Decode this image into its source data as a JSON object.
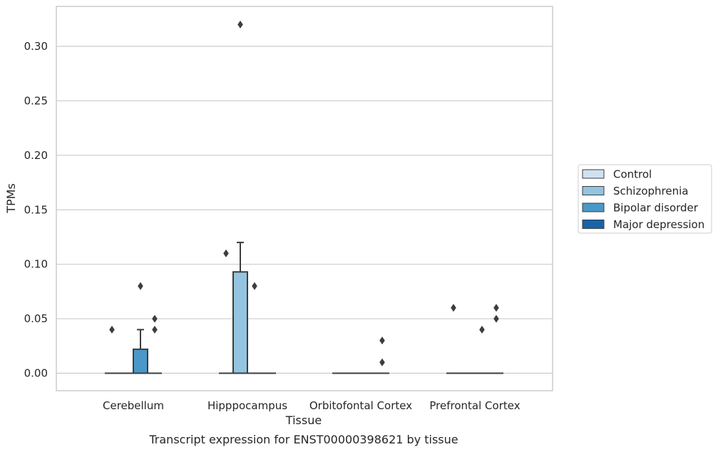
{
  "chart_data": {
    "type": "box",
    "xlabel": "Tissue",
    "ylabel": "TPMs",
    "caption": "Transcript expression for ENST00000398621 by tissue",
    "ylim": [
      -0.016,
      0.336
    ],
    "yticks": [
      0.0,
      0.05,
      0.1,
      0.15,
      0.2,
      0.25,
      0.3
    ],
    "ytick_labels": [
      "0.00",
      "0.05",
      "0.10",
      "0.15",
      "0.20",
      "0.25",
      "0.30"
    ],
    "grid": true,
    "legend_position": "right",
    "categories": [
      "Cerebellum",
      "Hipppocampus",
      "Orbitofontal Cortex",
      "Prefrontal Cortex"
    ],
    "series": [
      {
        "name": "Control",
        "color": "#d0e1f2",
        "boxes": [
          {
            "q1": 0,
            "median": 0,
            "q3": 0,
            "whisker_low": 0,
            "whisker_high": 0,
            "outliers": [
              0.04
            ]
          },
          {
            "q1": 0,
            "median": 0,
            "q3": 0,
            "whisker_low": 0,
            "whisker_high": 0,
            "outliers": [
              0.11
            ]
          },
          {
            "q1": 0,
            "median": 0,
            "q3": 0,
            "whisker_low": 0,
            "whisker_high": 0,
            "outliers": []
          },
          {
            "q1": 0,
            "median": 0,
            "q3": 0,
            "whisker_low": 0,
            "whisker_high": 0,
            "outliers": [
              0.06
            ]
          }
        ]
      },
      {
        "name": "Schizophrenia",
        "color": "#94c4df",
        "boxes": [
          {
            "q1": 0,
            "median": 0,
            "q3": 0,
            "whisker_low": 0,
            "whisker_high": 0,
            "outliers": []
          },
          {
            "q1": 0,
            "median": 0,
            "q3": 0.093,
            "whisker_low": 0,
            "whisker_high": 0.12,
            "outliers": [
              0.32
            ]
          },
          {
            "q1": 0,
            "median": 0,
            "q3": 0,
            "whisker_low": 0,
            "whisker_high": 0,
            "outliers": []
          },
          {
            "q1": 0,
            "median": 0,
            "q3": 0,
            "whisker_low": 0,
            "whisker_high": 0,
            "outliers": []
          }
        ]
      },
      {
        "name": "Bipolar disorder",
        "color": "#4a98c9",
        "boxes": [
          {
            "q1": 0,
            "median": 0,
            "q3": 0.022,
            "whisker_low": 0,
            "whisker_high": 0.04,
            "outliers": [
              0.08
            ]
          },
          {
            "q1": 0,
            "median": 0,
            "q3": 0,
            "whisker_low": 0,
            "whisker_high": 0,
            "outliers": [
              0.08
            ]
          },
          {
            "q1": 0,
            "median": 0,
            "q3": 0,
            "whisker_low": 0,
            "whisker_high": 0,
            "outliers": []
          },
          {
            "q1": 0,
            "median": 0,
            "q3": 0,
            "whisker_low": 0,
            "whisker_high": 0,
            "outliers": [
              0.04
            ]
          }
        ]
      },
      {
        "name": "Major depression",
        "color": "#1764ab",
        "boxes": [
          {
            "q1": 0,
            "median": 0,
            "q3": 0,
            "whisker_low": 0,
            "whisker_high": 0,
            "outliers": [
              0.05,
              0.04
            ]
          },
          {
            "q1": 0,
            "median": 0,
            "q3": 0,
            "whisker_low": 0,
            "whisker_high": 0,
            "outliers": []
          },
          {
            "q1": 0,
            "median": 0,
            "q3": 0,
            "whisker_low": 0,
            "whisker_high": 0,
            "outliers": [
              0.03,
              0.01
            ]
          },
          {
            "q1": 0,
            "median": 0,
            "q3": 0,
            "whisker_low": 0,
            "whisker_high": 0,
            "outliers": [
              0.06,
              0.05
            ]
          }
        ]
      }
    ],
    "colors": {
      "grid": "#cccccc",
      "frame": "#cccccc",
      "box_edge": "#3d3d3d",
      "outlier": "#3d3d3d"
    }
  }
}
